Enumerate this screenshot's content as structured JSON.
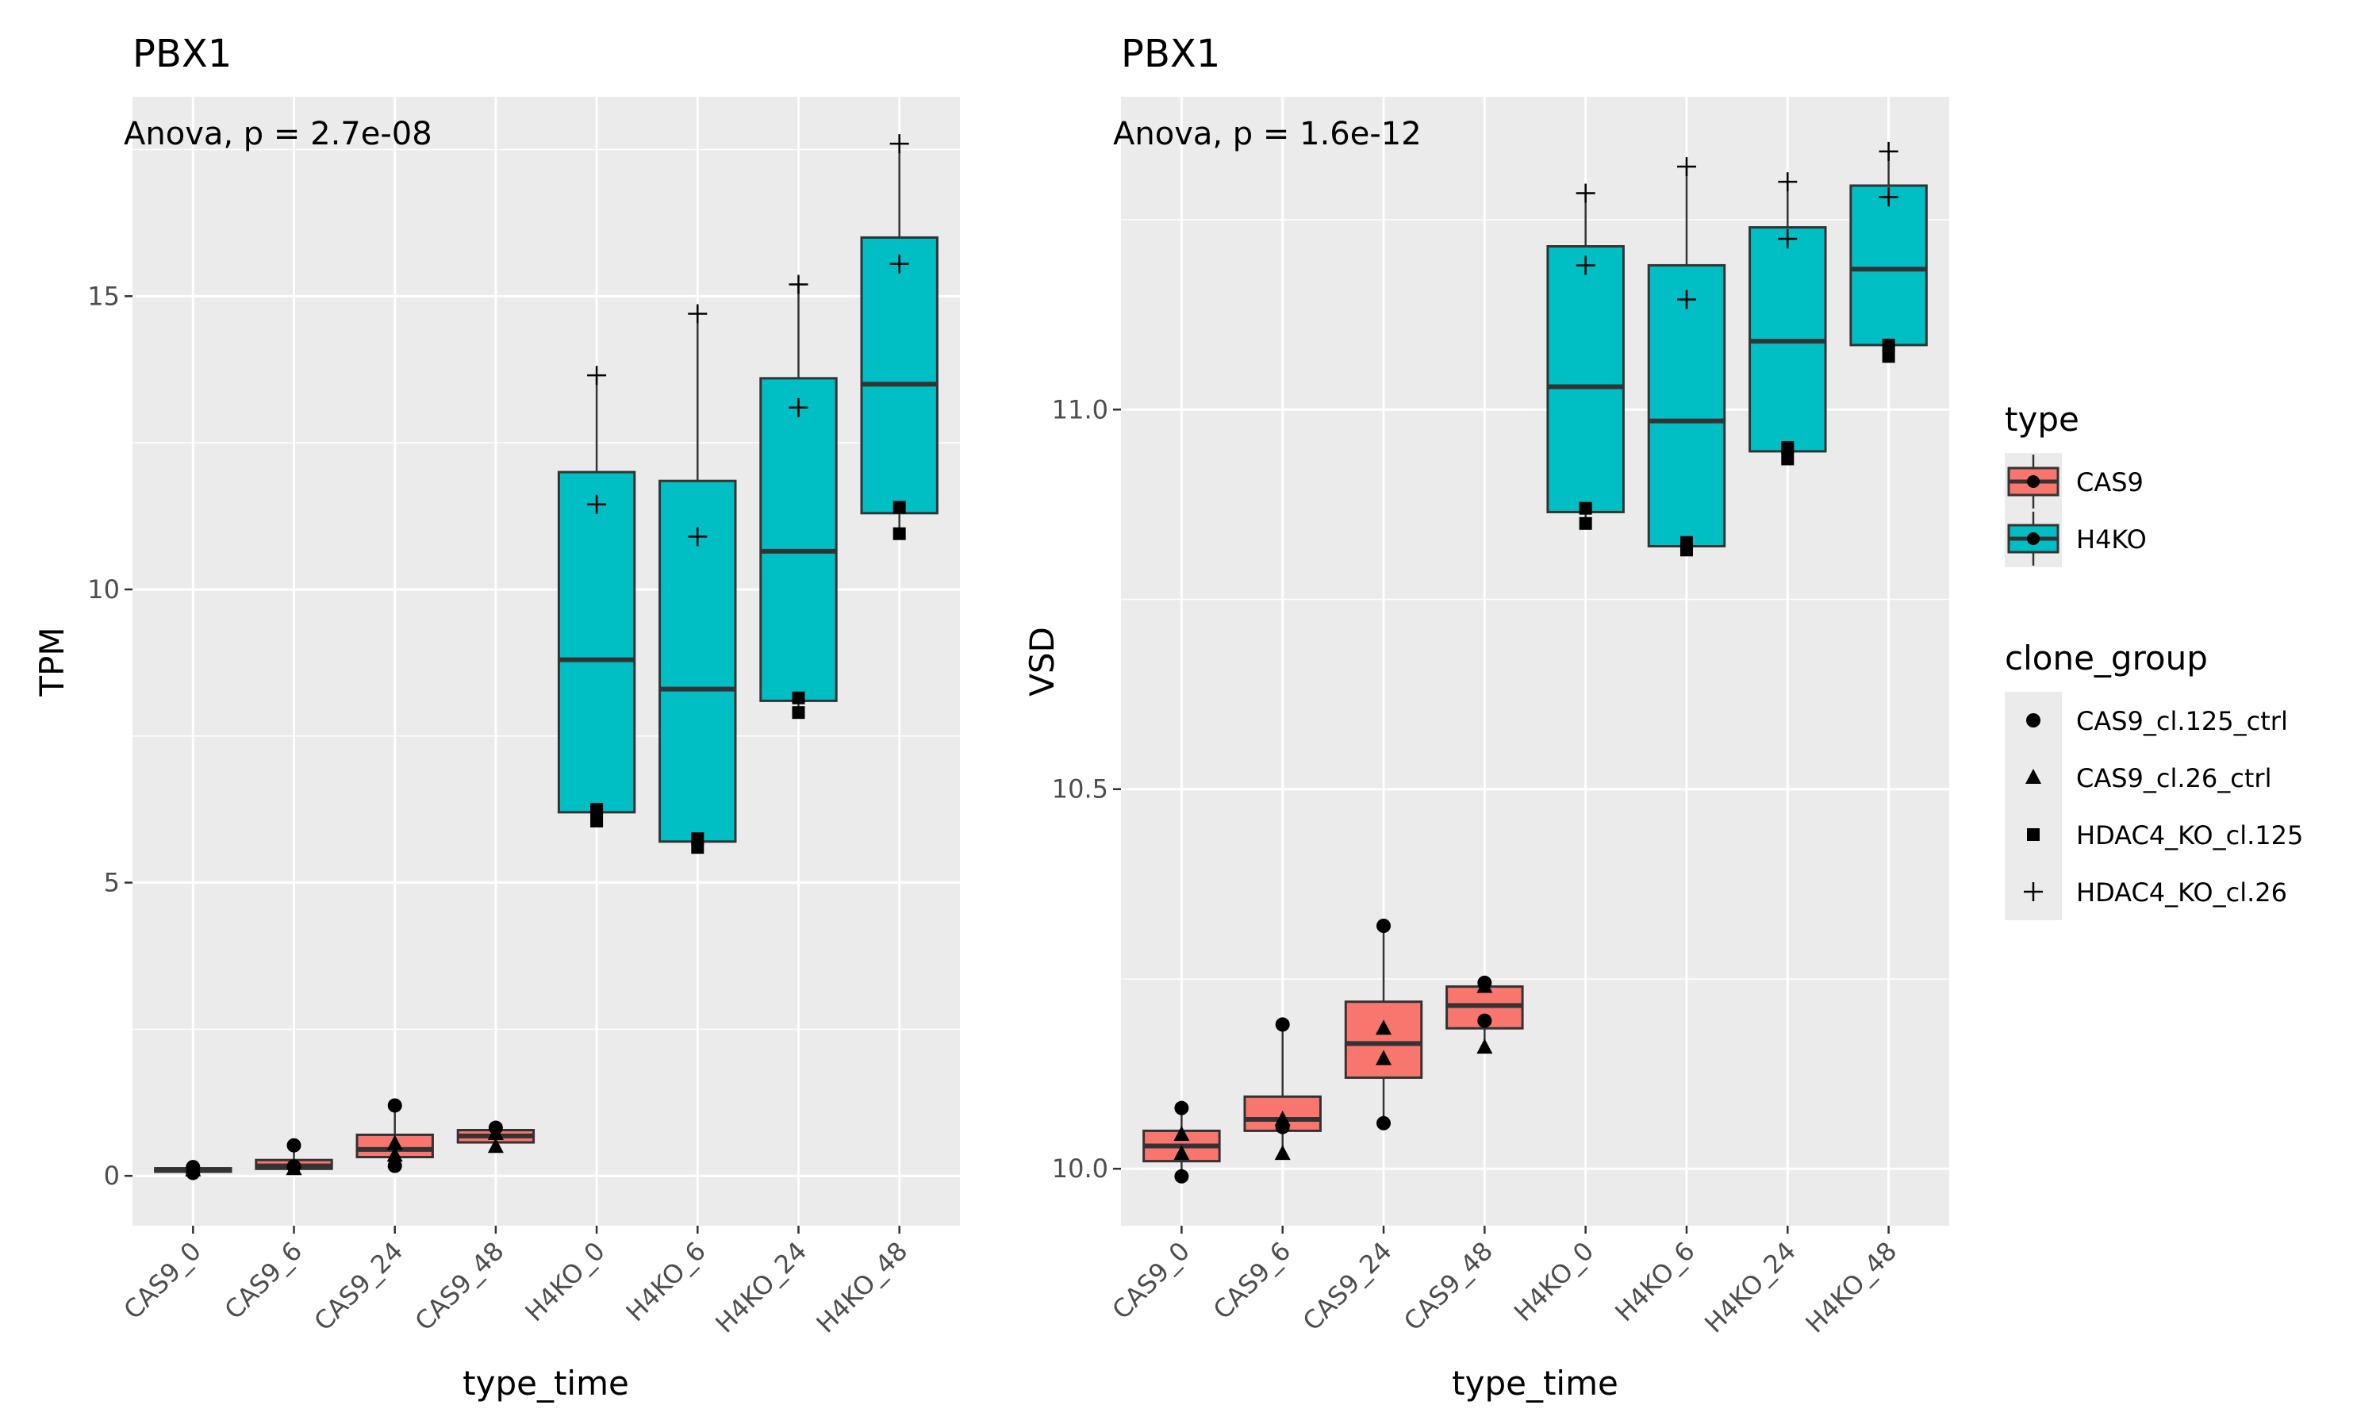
{
  "chart_data": [
    {
      "type": "box",
      "title": "PBX1",
      "annotation": "Anova, p = 2.7e-08",
      "xlabel": "type_time",
      "ylabel": "TPM",
      "ylim": [
        -0.85,
        18.4
      ],
      "yticks": [
        0,
        5,
        10,
        15
      ],
      "ytick_labels": [
        "0",
        "5",
        "10",
        "15"
      ],
      "grid": true,
      "categories": [
        "CAS9_0",
        "CAS9_6",
        "CAS9_24",
        "CAS9_48",
        "H4KO_0",
        "H4KO_6",
        "H4KO_24",
        "H4KO_48"
      ],
      "boxes": [
        {
          "category": "CAS9_0",
          "type": "CAS9",
          "min": 0.05,
          "q1": 0.07,
          "median": 0.1,
          "q3": 0.13,
          "max": 0.15,
          "points": [
            {
              "group": "CAS9_cl.125_ctrl",
              "y": 0.15
            },
            {
              "group": "CAS9_cl.26_ctrl",
              "y": 0.1
            },
            {
              "group": "CAS9_cl.125_ctrl",
              "y": 0.05
            }
          ]
        },
        {
          "category": "CAS9_6",
          "type": "CAS9",
          "min": 0.12,
          "q1": 0.12,
          "median": 0.17,
          "q3": 0.27,
          "max": 0.52,
          "points": [
            {
              "group": "CAS9_cl.125_ctrl",
              "y": 0.52
            },
            {
              "group": "CAS9_cl.26_ctrl",
              "y": 0.12
            },
            {
              "group": "CAS9_cl.125_ctrl",
              "y": 0.16
            }
          ]
        },
        {
          "category": "CAS9_24",
          "type": "CAS9",
          "min": 0.17,
          "q1": 0.32,
          "median": 0.45,
          "q3": 0.7,
          "max": 1.2,
          "points": [
            {
              "group": "CAS9_cl.125_ctrl",
              "y": 1.2
            },
            {
              "group": "CAS9_cl.26_ctrl",
              "y": 0.55
            },
            {
              "group": "CAS9_cl.26_ctrl",
              "y": 0.35
            },
            {
              "group": "CAS9_cl.125_ctrl",
              "y": 0.17
            }
          ]
        },
        {
          "category": "CAS9_48",
          "type": "CAS9",
          "min": 0.5,
          "q1": 0.57,
          "median": 0.68,
          "q3": 0.78,
          "max": 0.82,
          "points": [
            {
              "group": "CAS9_cl.125_ctrl",
              "y": 0.82
            },
            {
              "group": "CAS9_cl.26_ctrl",
              "y": 0.72
            },
            {
              "group": "CAS9_cl.26_ctrl",
              "y": 0.5
            }
          ]
        },
        {
          "category": "H4KO_0",
          "type": "H4KO",
          "min": 6.0,
          "q1": 6.2,
          "median": 8.8,
          "q3": 12.0,
          "max": 13.65,
          "points": [
            {
              "group": "HDAC4_KO_cl.26",
              "y": 13.65
            },
            {
              "group": "HDAC4_KO_cl.26",
              "y": 11.45
            },
            {
              "group": "HDAC4_KO_cl.125",
              "y": 6.25
            },
            {
              "group": "HDAC4_KO_cl.125",
              "y": 6.05
            }
          ]
        },
        {
          "category": "H4KO_6",
          "type": "H4KO",
          "min": 5.6,
          "q1": 5.7,
          "median": 8.3,
          "q3": 11.85,
          "max": 14.7,
          "points": [
            {
              "group": "HDAC4_KO_cl.26",
              "y": 14.7
            },
            {
              "group": "HDAC4_KO_cl.26",
              "y": 10.9
            },
            {
              "group": "HDAC4_KO_cl.125",
              "y": 5.75
            },
            {
              "group": "HDAC4_KO_cl.125",
              "y": 5.6
            }
          ]
        },
        {
          "category": "H4KO_24",
          "type": "H4KO",
          "min": 7.9,
          "q1": 8.1,
          "median": 10.65,
          "q3": 13.6,
          "max": 15.2,
          "points": [
            {
              "group": "HDAC4_KO_cl.26",
              "y": 15.2
            },
            {
              "group": "HDAC4_KO_cl.26",
              "y": 13.1
            },
            {
              "group": "HDAC4_KO_cl.125",
              "y": 8.15
            },
            {
              "group": "HDAC4_KO_cl.125",
              "y": 7.9
            }
          ]
        },
        {
          "category": "H4KO_48",
          "type": "H4KO",
          "min": 10.95,
          "q1": 11.3,
          "median": 13.5,
          "q3": 16.0,
          "max": 17.6,
          "points": [
            {
              "group": "HDAC4_KO_cl.26",
              "y": 17.6
            },
            {
              "group": "HDAC4_KO_cl.26",
              "y": 15.55
            },
            {
              "group": "HDAC4_KO_cl.125",
              "y": 11.4
            },
            {
              "group": "HDAC4_KO_cl.125",
              "y": 10.95
            }
          ]
        }
      ]
    },
    {
      "type": "box",
      "title": "PBX1",
      "annotation": "Anova, p = 1.6e-12",
      "xlabel": "type_time",
      "ylabel": "VSD",
      "ylim": [
        9.925,
        11.412
      ],
      "yticks": [
        10.0,
        10.5,
        11.0
      ],
      "ytick_labels": [
        "10.0",
        "10.5",
        "11.0"
      ],
      "grid": true,
      "categories": [
        "CAS9_0",
        "CAS9_6",
        "CAS9_24",
        "CAS9_48",
        "H4KO_0",
        "H4KO_6",
        "H4KO_24",
        "H4KO_48"
      ],
      "boxes": [
        {
          "category": "CAS9_0",
          "type": "CAS9",
          "min": 9.99,
          "q1": 10.01,
          "median": 10.03,
          "q3": 10.05,
          "max": 10.08,
          "points": [
            {
              "group": "CAS9_cl.125_ctrl",
              "y": 10.08
            },
            {
              "group": "CAS9_cl.26_ctrl",
              "y": 10.045
            },
            {
              "group": "CAS9_cl.26_ctrl",
              "y": 10.02
            },
            {
              "group": "CAS9_cl.125_ctrl",
              "y": 9.99
            }
          ]
        },
        {
          "category": "CAS9_6",
          "type": "CAS9",
          "min": 10.02,
          "q1": 10.05,
          "median": 10.065,
          "q3": 10.095,
          "max": 10.19,
          "points": [
            {
              "group": "CAS9_cl.125_ctrl",
              "y": 10.19
            },
            {
              "group": "CAS9_cl.26_ctrl",
              "y": 10.065
            },
            {
              "group": "CAS9_cl.26_ctrl",
              "y": 10.02
            },
            {
              "group": "CAS9_cl.125_ctrl",
              "y": 10.055
            }
          ]
        },
        {
          "category": "CAS9_24",
          "type": "CAS9",
          "min": 10.06,
          "q1": 10.12,
          "median": 10.165,
          "q3": 10.22,
          "max": 10.32,
          "points": [
            {
              "group": "CAS9_cl.125_ctrl",
              "y": 10.32
            },
            {
              "group": "CAS9_cl.26_ctrl",
              "y": 10.185
            },
            {
              "group": "CAS9_cl.26_ctrl",
              "y": 10.145
            },
            {
              "group": "CAS9_cl.125_ctrl",
              "y": 10.06
            }
          ]
        },
        {
          "category": "CAS9_48",
          "type": "CAS9",
          "min": 10.16,
          "q1": 10.185,
          "median": 10.215,
          "q3": 10.24,
          "max": 10.245,
          "points": [
            {
              "group": "CAS9_cl.125_ctrl",
              "y": 10.245
            },
            {
              "group": "CAS9_cl.125_ctrl",
              "y": 10.195
            },
            {
              "group": "CAS9_cl.26_ctrl",
              "y": 10.16
            },
            {
              "group": "CAS9_cl.26_ctrl",
              "y": 10.24
            }
          ]
        },
        {
          "category": "H4KO_0",
          "type": "H4KO",
          "min": 10.85,
          "q1": 10.865,
          "median": 11.03,
          "q3": 11.215,
          "max": 11.285,
          "points": [
            {
              "group": "HDAC4_KO_cl.26",
              "y": 11.285
            },
            {
              "group": "HDAC4_KO_cl.26",
              "y": 11.19
            },
            {
              "group": "HDAC4_KO_cl.125",
              "y": 10.87
            },
            {
              "group": "HDAC4_KO_cl.125",
              "y": 10.85
            }
          ]
        },
        {
          "category": "H4KO_6",
          "type": "H4KO",
          "min": 10.81,
          "q1": 10.82,
          "median": 10.985,
          "q3": 11.19,
          "max": 11.32,
          "points": [
            {
              "group": "HDAC4_KO_cl.26",
              "y": 11.32
            },
            {
              "group": "HDAC4_KO_cl.26",
              "y": 11.145
            },
            {
              "group": "HDAC4_KO_cl.125",
              "y": 10.825
            },
            {
              "group": "HDAC4_KO_cl.125",
              "y": 10.815
            }
          ]
        },
        {
          "category": "H4KO_24",
          "type": "H4KO",
          "min": 10.93,
          "q1": 10.945,
          "median": 11.09,
          "q3": 11.24,
          "max": 11.3,
          "points": [
            {
              "group": "HDAC4_KO_cl.26",
              "y": 11.3
            },
            {
              "group": "HDAC4_KO_cl.26",
              "y": 11.225
            },
            {
              "group": "HDAC4_KO_cl.125",
              "y": 10.95
            },
            {
              "group": "HDAC4_KO_cl.125",
              "y": 10.935
            }
          ]
        },
        {
          "category": "H4KO_48",
          "type": "H4KO",
          "min": 11.07,
          "q1": 11.085,
          "median": 11.185,
          "q3": 11.295,
          "max": 11.34,
          "points": [
            {
              "group": "HDAC4_KO_cl.26",
              "y": 11.34
            },
            {
              "group": "HDAC4_KO_cl.26",
              "y": 11.28
            },
            {
              "group": "HDAC4_KO_cl.125",
              "y": 11.085
            },
            {
              "group": "HDAC4_KO_cl.125",
              "y": 11.07
            }
          ]
        }
      ]
    }
  ],
  "legend": {
    "placement": "right",
    "type": {
      "title": "type",
      "entries": [
        {
          "label": "CAS9",
          "color": "#f8766d"
        },
        {
          "label": "H4KO",
          "color": "#00bfc4"
        }
      ]
    },
    "clone_group": {
      "title": "clone_group",
      "entries": [
        {
          "label": "CAS9_cl.125_ctrl",
          "shape": "circle"
        },
        {
          "label": "CAS9_cl.26_ctrl",
          "shape": "triangle"
        },
        {
          "label": "HDAC4_KO_cl.125",
          "shape": "square"
        },
        {
          "label": "HDAC4_KO_cl.26",
          "shape": "plus"
        }
      ]
    }
  },
  "colors": {
    "panel_background": "#ebebeb",
    "grid": "#ffffff",
    "box_outline": "#333333",
    "CAS9": "#f8766d",
    "H4KO": "#00bfc4"
  }
}
